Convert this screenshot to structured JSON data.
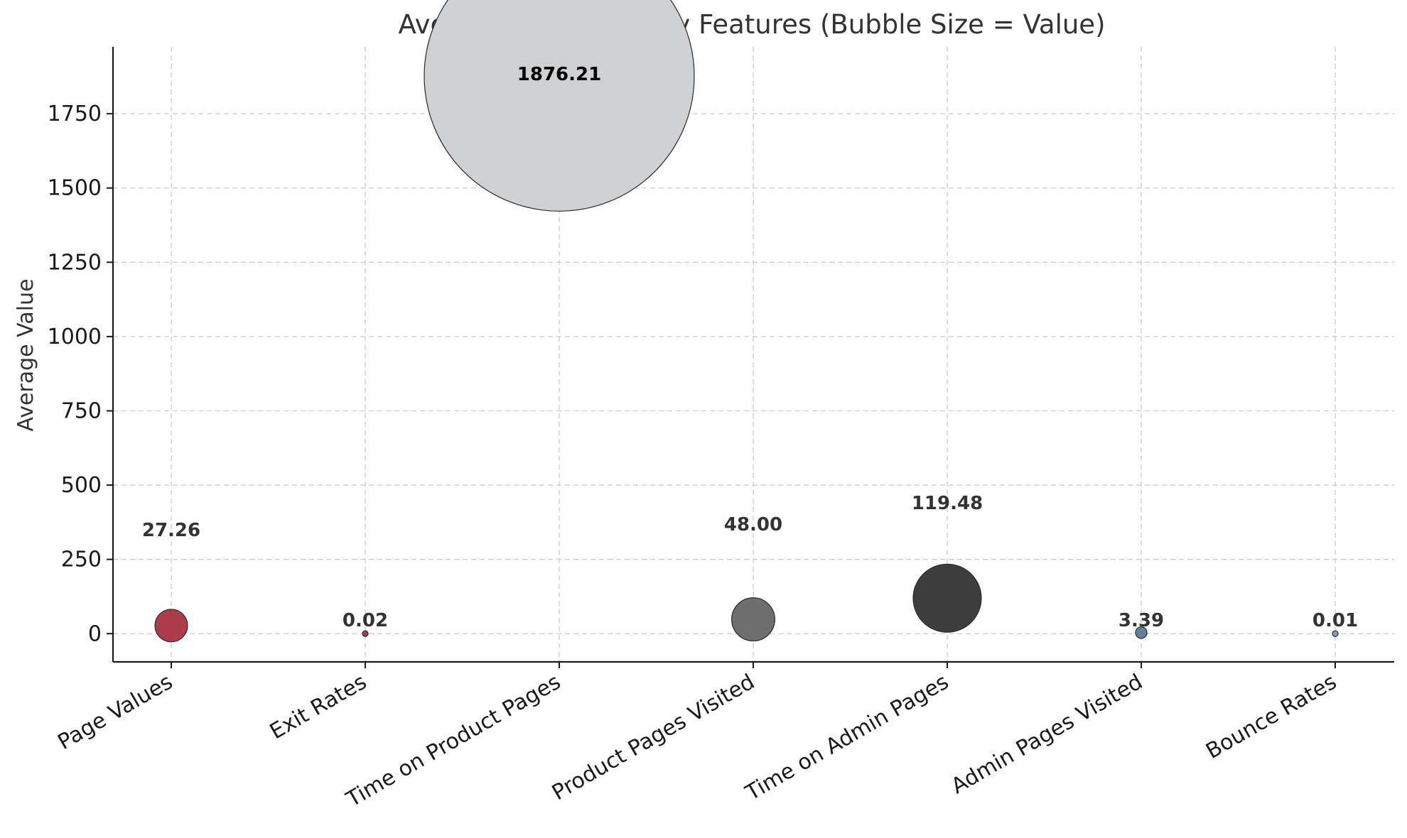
{
  "chart_data": {
    "type": "scatter",
    "title": "Average Values of Key Features (Bubble Size = Value)",
    "xlabel": "",
    "ylabel": "Average Value",
    "categories": [
      "Page Values",
      "Exit Rates",
      "Time on Product Pages",
      "Product Pages Visited",
      "Time on Admin Pages",
      "Admin Pages Visited",
      "Bounce Rates"
    ],
    "values": [
      27.26,
      0.02,
      1876.21,
      48.0,
      119.48,
      3.39,
      0.01
    ],
    "data_labels": [
      "27.26",
      "0.02",
      "1876.21",
      "48.00",
      "119.48",
      "3.39",
      "0.01"
    ],
    "colors": [
      "#a83240",
      "#a83240",
      "#d0d1d3",
      "#666666",
      "#333333",
      "#5a7a99",
      "#8899aa"
    ],
    "label_colors": [
      "#333333",
      "#333333",
      "#000000",
      "#333333",
      "#333333",
      "#333333",
      "#333333"
    ],
    "ylim": [
      -95,
      1975
    ],
    "yticks": [
      0,
      250,
      500,
      750,
      1000,
      1250,
      1500,
      1750
    ],
    "grid": true,
    "legend": "none"
  }
}
